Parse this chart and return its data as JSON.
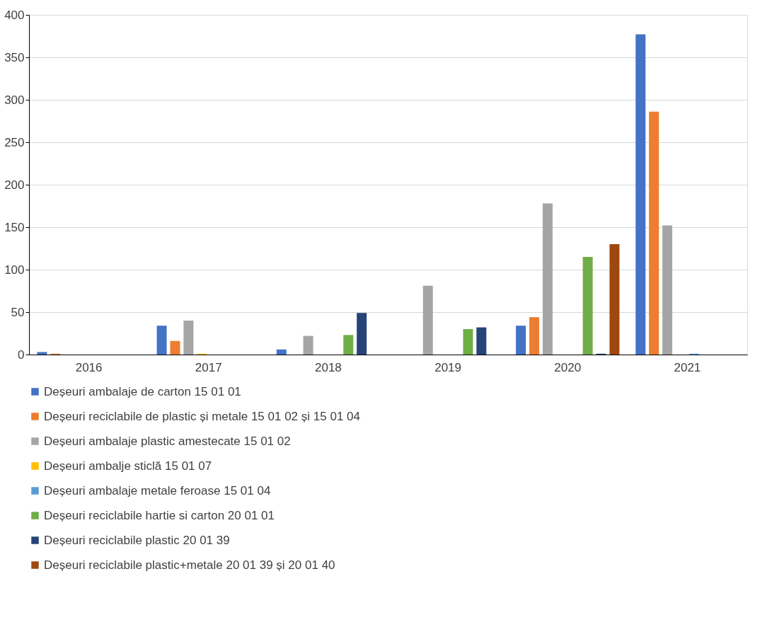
{
  "chart_data": {
    "type": "bar",
    "categories": [
      "2016",
      "2017",
      "2018",
      "2019",
      "2020",
      "2021"
    ],
    "series": [
      {
        "name": "Deșeuri ambalaje de carton 15 01 01",
        "color": "#4472c4",
        "values": [
          3,
          34,
          6,
          null,
          34,
          377
        ]
      },
      {
        "name": "Deșeuri reciclabile de plastic și metale 15 01 02 și 15 01 04",
        "color": "#ed7d31",
        "values": [
          1,
          16,
          null,
          null,
          44,
          286
        ]
      },
      {
        "name": "Deșeuri ambalaje plastic amestecate 15 01 02",
        "color": "#a5a5a5",
        "values": [
          null,
          40,
          22,
          81,
          178,
          152
        ]
      },
      {
        "name": "Deșeuri ambalje sticlă 15 01 07",
        "color": "#ffc000",
        "values": [
          null,
          1,
          null,
          null,
          null,
          null
        ]
      },
      {
        "name": "Deșeuri ambalaje metale feroase 15 01 04",
        "color": "#5b9bd5",
        "values": [
          null,
          null,
          null,
          null,
          null,
          1
        ]
      },
      {
        "name": "Deșeuri reciclabile  hartie si carton 20 01 01",
        "color": "#70ad47",
        "values": [
          null,
          null,
          23,
          30,
          115,
          null
        ]
      },
      {
        "name": "Deșeuri reciclabile plastic 20 01 39",
        "color": "#264478",
        "values": [
          null,
          null,
          49,
          32,
          1,
          null
        ]
      },
      {
        "name": "Deșeuri reciclabile plastic+metale 20 01 39 și 20 01 40",
        "color": "#9e480e",
        "values": [
          null,
          null,
          null,
          null,
          130,
          null
        ]
      }
    ],
    "ylim": [
      0,
      400
    ],
    "yticks": [
      0,
      50,
      100,
      150,
      200,
      250,
      300,
      350,
      400
    ],
    "grid": "y",
    "legend": "bottom"
  }
}
